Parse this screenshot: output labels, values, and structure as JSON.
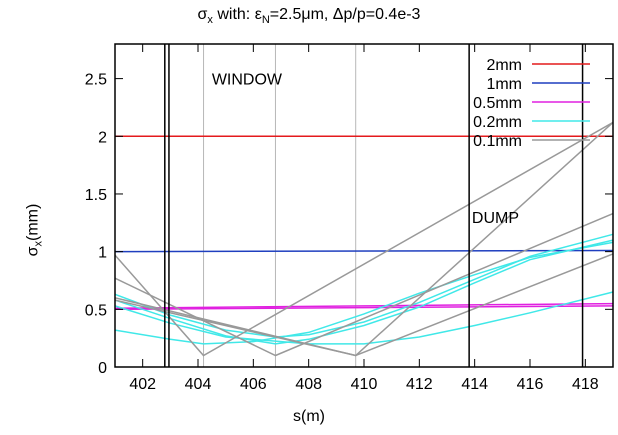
{
  "chart_data": {
    "type": "line",
    "title_parts": [
      "σ",
      "x",
      " with: ε",
      "N",
      "=2.5μm, Δp/p=0.4e-3"
    ],
    "xlabel": "s(m)",
    "ylabel_parts": [
      "σ",
      "x",
      "(mm)"
    ],
    "xlim": [
      401,
      419
    ],
    "ylim": [
      0,
      2.8
    ],
    "xticks": [
      402,
      404,
      406,
      408,
      410,
      412,
      414,
      416,
      418
    ],
    "yticks": [
      0,
      0.5,
      1,
      1.5,
      2,
      2.5
    ],
    "grid": "vertical-lines",
    "legend_placement": "top-right",
    "annotations": [
      {
        "text": "WINDOW",
        "x": 404.5,
        "y": 2.45
      },
      {
        "text": "DUMP",
        "x": 413.9,
        "y": 1.25
      }
    ],
    "vertical_markers": [
      402.8,
      402.95,
      413.8,
      417.9
    ],
    "grid_x": [
      404.2,
      406.8,
      409.7
    ],
    "series": [
      {
        "name": "2mm",
        "color": "#e41a1c",
        "lines": [
          [
            [
              401,
              2.0
            ],
            [
              419,
              2.0
            ]
          ]
        ]
      },
      {
        "name": "1mm",
        "color": "#1f3fbf",
        "lines": [
          [
            [
              401,
              1.0
            ],
            [
              419,
              1.01
            ]
          ]
        ]
      },
      {
        "name": "0.5mm",
        "color": "#e020e0",
        "lines": [
          [
            [
              401,
              0.5
            ],
            [
              419,
              0.53
            ]
          ],
          [
            [
              401,
              0.51
            ],
            [
              419,
              0.55
            ]
          ]
        ]
      },
      {
        "name": "0.2mm",
        "color": "#40e8e8",
        "lines": [
          [
            [
              401,
              0.63
            ],
            [
              403,
              0.45
            ],
            [
              405,
              0.32
            ],
            [
              406.8,
              0.26
            ],
            [
              408,
              0.28
            ],
            [
              410,
              0.39
            ],
            [
              412,
              0.56
            ],
            [
              414,
              0.76
            ],
            [
              416,
              0.96
            ],
            [
              419,
              1.15
            ]
          ],
          [
            [
              401,
              0.58
            ],
            [
              403,
              0.42
            ],
            [
              405,
              0.27
            ],
            [
              406.8,
              0.2
            ],
            [
              408,
              0.24
            ],
            [
              410,
              0.36
            ],
            [
              412,
              0.52
            ],
            [
              414,
              0.73
            ],
            [
              416,
              0.93
            ],
            [
              419,
              1.1
            ]
          ],
          [
            [
              401,
              0.32
            ],
            [
              403,
              0.24
            ],
            [
              404.2,
              0.2
            ],
            [
              406,
              0.22
            ],
            [
              408,
              0.3
            ],
            [
              410,
              0.46
            ],
            [
              412,
              0.64
            ],
            [
              414,
              0.8
            ],
            [
              416,
              0.95
            ],
            [
              419,
              1.08
            ]
          ],
          [
            [
              401,
              0.53
            ],
            [
              403,
              0.38
            ],
            [
              405,
              0.26
            ],
            [
              408,
              0.2
            ],
            [
              410,
              0.2
            ],
            [
              412,
              0.26
            ],
            [
              414,
              0.36
            ],
            [
              416,
              0.47
            ],
            [
              419,
              0.65
            ]
          ]
        ]
      },
      {
        "name": "0.1mm",
        "color": "#999999",
        "lines": [
          [
            [
              401,
              0.97
            ],
            [
              404.2,
              0.1
            ],
            [
              419,
              2.12
            ]
          ],
          [
            [
              401,
              0.77
            ],
            [
              406.8,
              0.1
            ],
            [
              419,
              1.33
            ]
          ],
          [
            [
              401,
              0.58
            ],
            [
              409.7,
              0.1
            ],
            [
              419,
              0.98
            ]
          ],
          [
            [
              401,
              0.6
            ],
            [
              409.7,
              0.1
            ],
            [
              419,
              2.12
            ]
          ]
        ]
      }
    ]
  }
}
